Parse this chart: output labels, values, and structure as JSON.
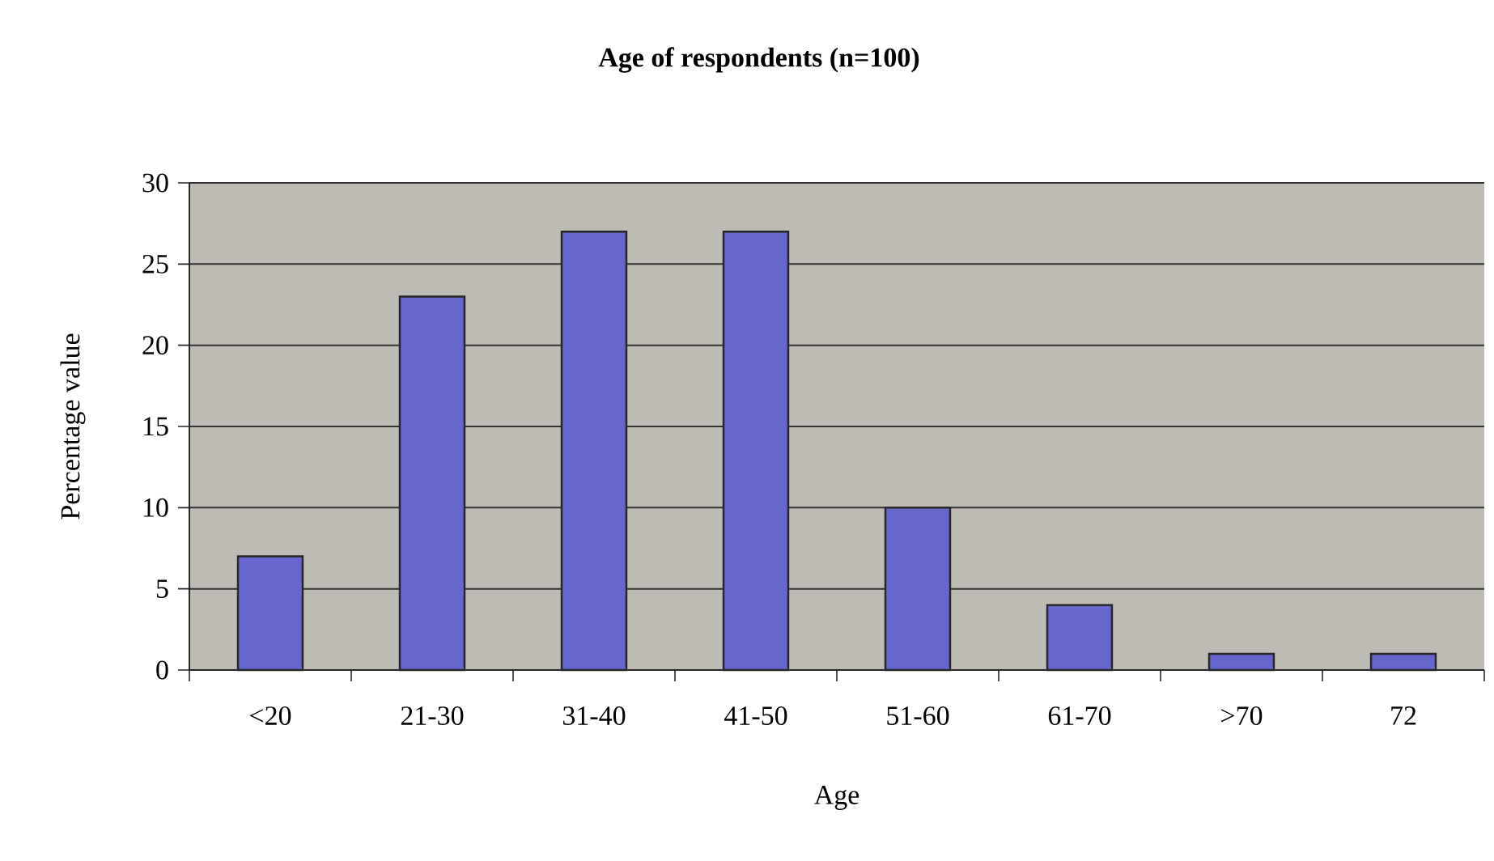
{
  "chart_data": {
    "type": "bar",
    "title": "Age of respondents (n=100)",
    "xlabel": "Age",
    "ylabel": "Percentage value",
    "categories": [
      "<20",
      "21-30",
      "31-40",
      "41-50",
      "51-60",
      "61-70",
      ">70",
      "72"
    ],
    "values": [
      7,
      23,
      27,
      27,
      10,
      4,
      1,
      1
    ],
    "color": "#6666cc",
    "ylim": [
      0,
      30
    ],
    "yticks": [
      0,
      5,
      10,
      15,
      20,
      25,
      30
    ],
    "grid": "y"
  }
}
